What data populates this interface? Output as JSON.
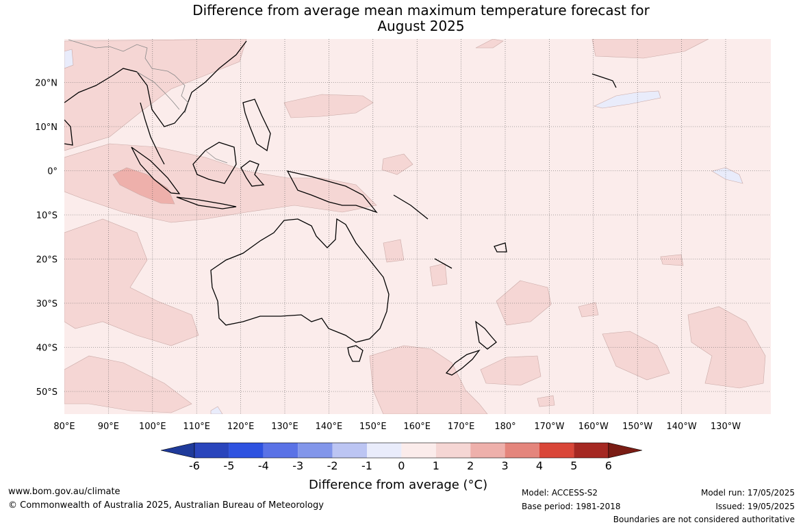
{
  "title": {
    "line1": "Difference from average mean maximum temperature forecast for",
    "line2": "August 2025"
  },
  "map": {
    "lat_labels": [
      "20°N",
      "10°N",
      "0°",
      "10°S",
      "20°S",
      "30°S",
      "40°S",
      "50°S"
    ],
    "lon_labels": [
      "80°E",
      "90°E",
      "100°E",
      "110°E",
      "120°E",
      "130°E",
      "140°E",
      "150°E",
      "160°E",
      "170°E",
      "180°",
      "170°W",
      "160°W",
      "150°W",
      "140°W",
      "130°W"
    ],
    "background_color": "#fbeceb",
    "anomaly_colors": {
      "0_to_1": "#fbeceb",
      "1_to_2": "#f5d6d4",
      "2_to_3": "#eeb0ab",
      "minus1_to_0": "#e9ecfb"
    }
  },
  "colorbar": {
    "tick_labels": [
      "-6",
      "-5",
      "-4",
      "-3",
      "-2",
      "-1",
      "0",
      "1",
      "2",
      "3",
      "4",
      "5",
      "6"
    ],
    "colors": [
      "#1f3a9a",
      "#2a45bc",
      "#2e52e0",
      "#5a72e6",
      "#8296ea",
      "#bcc5f3",
      "#e9ecfb",
      "#fbeceb",
      "#f5d6d4",
      "#eeb0ab",
      "#e4857c",
      "#d94638",
      "#a52822",
      "#7a1c14"
    ],
    "title": "Difference from average (°C)"
  },
  "footer": {
    "website": "www.bom.gov.au/climate",
    "copyright": "© Commonwealth of Australia 2025, Australian Bureau of Meteorology",
    "model": "Model: ACCESS-S2",
    "base_period": "Base period: 1981-2018",
    "model_run": "Model run: 17/05/2025",
    "issued": "Issued: 19/05/2025",
    "disclaimer": "Boundaries are not considered authoritative"
  }
}
